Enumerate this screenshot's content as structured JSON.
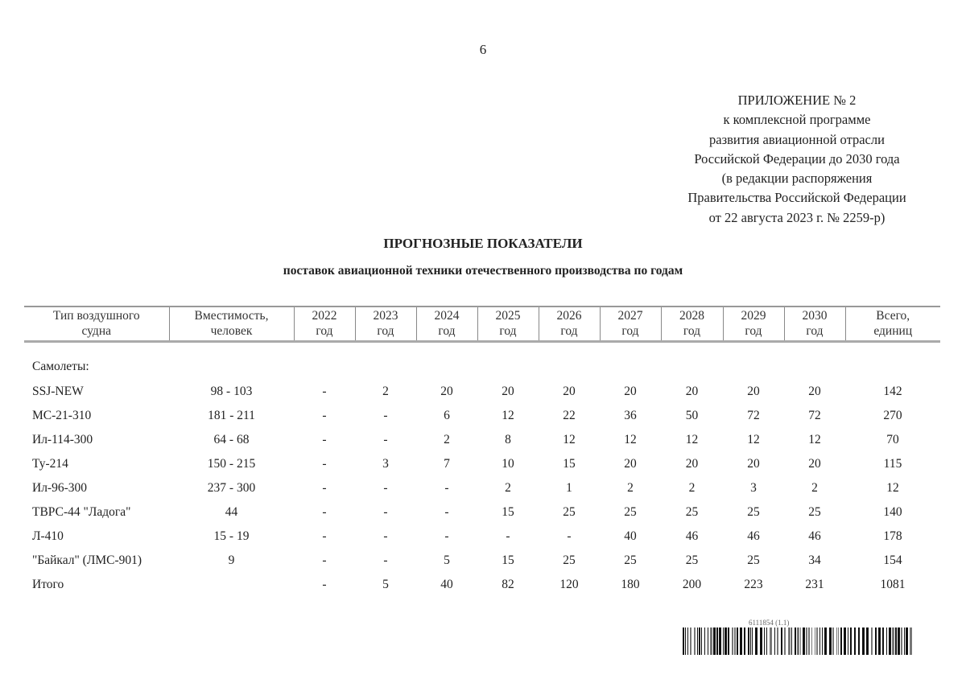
{
  "page_number": "6",
  "appendix": {
    "lines": [
      "ПРИЛОЖЕНИЕ № 2",
      "к комплексной программе",
      "развития авиационной отрасли",
      "Российской Федерации до 2030 года",
      "(в редакции распоряжения",
      "Правительства Российской Федерации",
      "от 22 августа 2023 г.  № 2259-р)"
    ]
  },
  "title": "ПРОГНОЗНЫЕ ПОКАЗАТЕЛИ",
  "subtitle": "поставок авиационной техники отечественного производства по годам",
  "table": {
    "headers": [
      [
        "Тип воздушного",
        "судна"
      ],
      [
        "Вместимость,",
        "человек"
      ],
      [
        "2022",
        "год"
      ],
      [
        "2023",
        "год"
      ],
      [
        "2024",
        "год"
      ],
      [
        "2025",
        "год"
      ],
      [
        "2026",
        "год"
      ],
      [
        "2027",
        "год"
      ],
      [
        "2028",
        "год"
      ],
      [
        "2029",
        "год"
      ],
      [
        "2030",
        "год"
      ],
      [
        "Всего,",
        "единиц"
      ]
    ],
    "section": "Самолеты:",
    "rows": [
      [
        "SSJ-NEW",
        "98 - 103",
        "-",
        "2",
        "20",
        "20",
        "20",
        "20",
        "20",
        "20",
        "20",
        "142"
      ],
      [
        "МС-21-310",
        "181 - 211",
        "-",
        "-",
        "6",
        "12",
        "22",
        "36",
        "50",
        "72",
        "72",
        "270"
      ],
      [
        "Ил-114-300",
        "64 - 68",
        "-",
        "-",
        "2",
        "8",
        "12",
        "12",
        "12",
        "12",
        "12",
        "70"
      ],
      [
        "Ту-214",
        "150 - 215",
        "-",
        "3",
        "7",
        "10",
        "15",
        "20",
        "20",
        "20",
        "20",
        "115"
      ],
      [
        "Ил-96-300",
        "237 - 300",
        "-",
        "-",
        "-",
        "2",
        "1",
        "2",
        "2",
        "3",
        "2",
        "12"
      ],
      [
        "ТВРС-44 \"Ладога\"",
        "44",
        "-",
        "-",
        "-",
        "15",
        "25",
        "25",
        "25",
        "25",
        "25",
        "140"
      ],
      [
        "Л-410",
        "15 - 19",
        "-",
        "-",
        "-",
        "-",
        "-",
        "40",
        "46",
        "46",
        "46",
        "178"
      ],
      [
        "\"Байкал\" (ЛМС-901)",
        "9",
        "-",
        "-",
        "5",
        "15",
        "25",
        "25",
        "25",
        "25",
        "34",
        "154"
      ],
      [
        "Итого",
        "",
        "-",
        "5",
        "40",
        "82",
        "120",
        "180",
        "200",
        "223",
        "231",
        "1081"
      ]
    ]
  },
  "barcode_text": "6111854 (1.1)"
}
